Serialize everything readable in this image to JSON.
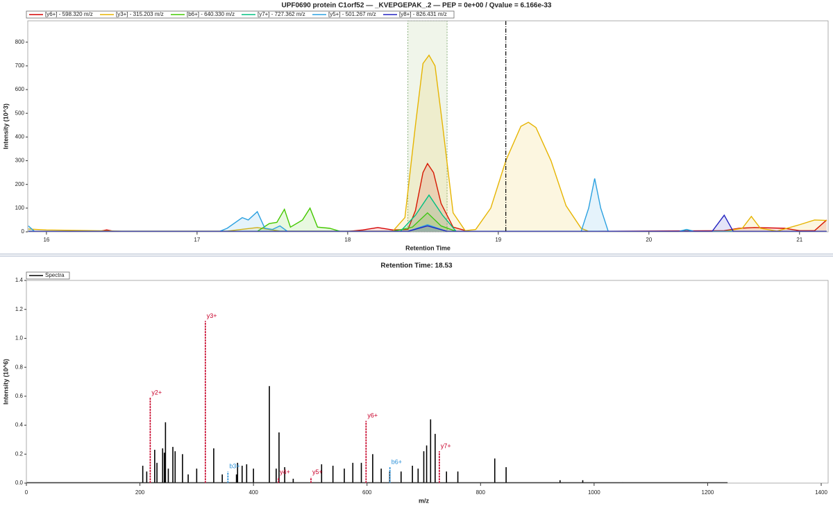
{
  "chart_data": [
    {
      "type": "line",
      "title": "UPF0690 protein C1orf52 — _KVEPGEPAK_.2 — PEP = 0e+00 / Qvalue = 6.166e-33",
      "x_label": "Retention Time",
      "y_label": "Intensity (10^3)",
      "xlim": [
        15.876,
        21.19
      ],
      "xticks": [
        16,
        17,
        18,
        19,
        20,
        21
      ],
      "ylim": [
        0,
        890
      ],
      "yticks": [
        0,
        100,
        200,
        300,
        400,
        500,
        600,
        700,
        800
      ],
      "peak_window": [
        18.4,
        18.66
      ],
      "marker_x": 19.05,
      "series": [
        {
          "name": "[y6+] - 598.320 m/z",
          "color": "#d40000",
          "x": [
            15.88,
            16.35,
            16.4,
            16.45,
            17.0,
            18.0,
            18.1,
            18.2,
            18.3,
            18.4,
            18.45,
            18.5,
            18.53,
            18.57,
            18.62,
            18.7,
            18.8,
            19.5,
            20.5,
            20.6,
            20.7,
            20.9,
            21.0,
            21.1,
            21.18
          ],
          "values": [
            2,
            2,
            8,
            2,
            2,
            2,
            8,
            18,
            8,
            10,
            90,
            250,
            288,
            250,
            120,
            20,
            2,
            2,
            5,
            15,
            18,
            15,
            5,
            5,
            50
          ]
        },
        {
          "name": "[y3+] - 315.203 m/z",
          "color": "#e6b400",
          "x": [
            15.88,
            16.0,
            16.5,
            17.2,
            17.4,
            17.55,
            18.3,
            18.38,
            18.45,
            18.5,
            18.54,
            18.58,
            18.63,
            18.7,
            18.78,
            18.85,
            18.95,
            19.05,
            19.15,
            19.2,
            19.25,
            19.35,
            19.45,
            19.55,
            19.6,
            20.5,
            20.62,
            20.68,
            20.74,
            20.85,
            21.0,
            21.1,
            21.18
          ],
          "values": [
            12,
            8,
            3,
            3,
            18,
            3,
            3,
            60,
            450,
            710,
            745,
            700,
            450,
            80,
            5,
            10,
            100,
            300,
            445,
            462,
            440,
            300,
            110,
            15,
            2,
            2,
            15,
            65,
            15,
            3,
            30,
            50,
            48
          ]
        },
        {
          "name": "[b6+] - 640.330 m/z",
          "color": "#44c800",
          "x": [
            15.88,
            17.4,
            17.48,
            17.53,
            17.58,
            17.62,
            17.7,
            17.75,
            17.8,
            17.88,
            17.95,
            18.3,
            18.43,
            18.53,
            18.62,
            18.72,
            21.18
          ],
          "values": [
            2,
            2,
            35,
            40,
            95,
            20,
            50,
            100,
            20,
            15,
            2,
            2,
            20,
            80,
            25,
            2,
            2
          ]
        },
        {
          "name": "[y7+] - 727.362 m/z",
          "color": "#00c080",
          "x": [
            15.88,
            18.35,
            18.45,
            18.54,
            18.63,
            18.72,
            20.2,
            20.25,
            20.3,
            21.18
          ],
          "values": [
            2,
            2,
            70,
            155,
            70,
            2,
            2,
            10,
            2,
            2
          ]
        },
        {
          "name": "[y5+] - 501.267 m/z",
          "color": "#2aa0e0",
          "x": [
            15.88,
            15.92,
            17.15,
            17.2,
            17.3,
            17.34,
            17.4,
            17.45,
            17.5,
            17.55,
            17.6,
            18.4,
            18.53,
            18.66,
            19.55,
            19.6,
            19.64,
            19.68,
            19.73,
            20.2,
            20.25,
            20.3,
            21.18
          ],
          "values": [
            25,
            2,
            2,
            15,
            60,
            50,
            85,
            15,
            10,
            25,
            2,
            2,
            30,
            2,
            2,
            100,
            225,
            100,
            2,
            2,
            10,
            2,
            2
          ]
        },
        {
          "name": "[y8+] - 826.431 m/z",
          "color": "#2222c0",
          "x": [
            15.88,
            18.4,
            18.53,
            18.66,
            20.42,
            20.5,
            20.56,
            21.18
          ],
          "values": [
            2,
            2,
            25,
            2,
            2,
            70,
            2,
            2
          ]
        }
      ]
    },
    {
      "type": "stick",
      "title": "Retention Time: 18.53",
      "x_label": "m/z",
      "y_label": "Intensity (10^6)",
      "xlim": [
        0,
        1400
      ],
      "xticks": [
        0,
        200,
        400,
        600,
        800,
        1000,
        1200,
        1400
      ],
      "ylim": [
        0,
        1.4
      ],
      "yticks": [
        {
          "value": 0,
          "label": "0.0"
        },
        0.2,
        0.4,
        0.6,
        0.8,
        {
          "value": 1,
          "label": "1.0"
        },
        1.2,
        1.4
      ],
      "series": [
        {
          "name": "Spectra",
          "color": "#000000",
          "x": [
            205,
            212,
            226,
            230,
            240,
            243,
            245,
            250,
            258,
            262,
            275,
            285,
            300,
            330,
            345,
            370,
            372,
            380,
            388,
            400,
            428,
            440,
            445,
            455,
            470,
            520,
            540,
            560,
            575,
            590,
            610,
            625,
            640,
            660,
            680,
            690,
            700,
            705,
            712,
            720,
            740,
            760,
            825,
            845,
            940,
            980,
            1050,
            1235
          ],
          "values": [
            0.12,
            0.08,
            0.23,
            0.14,
            0.24,
            0.21,
            0.42,
            0.1,
            0.25,
            0.22,
            0.2,
            0.06,
            0.1,
            0.24,
            0.06,
            0.06,
            0.14,
            0.12,
            0.13,
            0.1,
            0.67,
            0.1,
            0.35,
            0.11,
            0.03,
            0.13,
            0.12,
            0.1,
            0.14,
            0.14,
            0.2,
            0.1,
            0.08,
            0.08,
            0.12,
            0.1,
            0.22,
            0.26,
            0.44,
            0.34,
            0.08,
            0.08,
            0.17,
            0.11,
            0.02,
            0.02,
            0.005,
            0.002
          ]
        }
      ],
      "annotations": [
        {
          "label": "y2+",
          "x": 218.15,
          "y": 0.59,
          "color": "#c8002a"
        },
        {
          "label": "y3+",
          "x": 315.2,
          "y": 1.12,
          "color": "#c8002a"
        },
        {
          "label": "b3+",
          "x": 355,
          "y": 0.08,
          "color": "#2a90d8"
        },
        {
          "label": "y4+",
          "x": 444,
          "y": 0.04,
          "color": "#c8002a"
        },
        {
          "label": "y5+",
          "x": 501.27,
          "y": 0.04,
          "color": "#c8002a"
        },
        {
          "label": "y6+",
          "x": 598.32,
          "y": 0.43,
          "color": "#c8002a"
        },
        {
          "label": "b6+",
          "x": 640.33,
          "y": 0.11,
          "color": "#2a90d8"
        },
        {
          "label": "y7+",
          "x": 727.36,
          "y": 0.22,
          "color": "#c8002a"
        }
      ]
    }
  ]
}
